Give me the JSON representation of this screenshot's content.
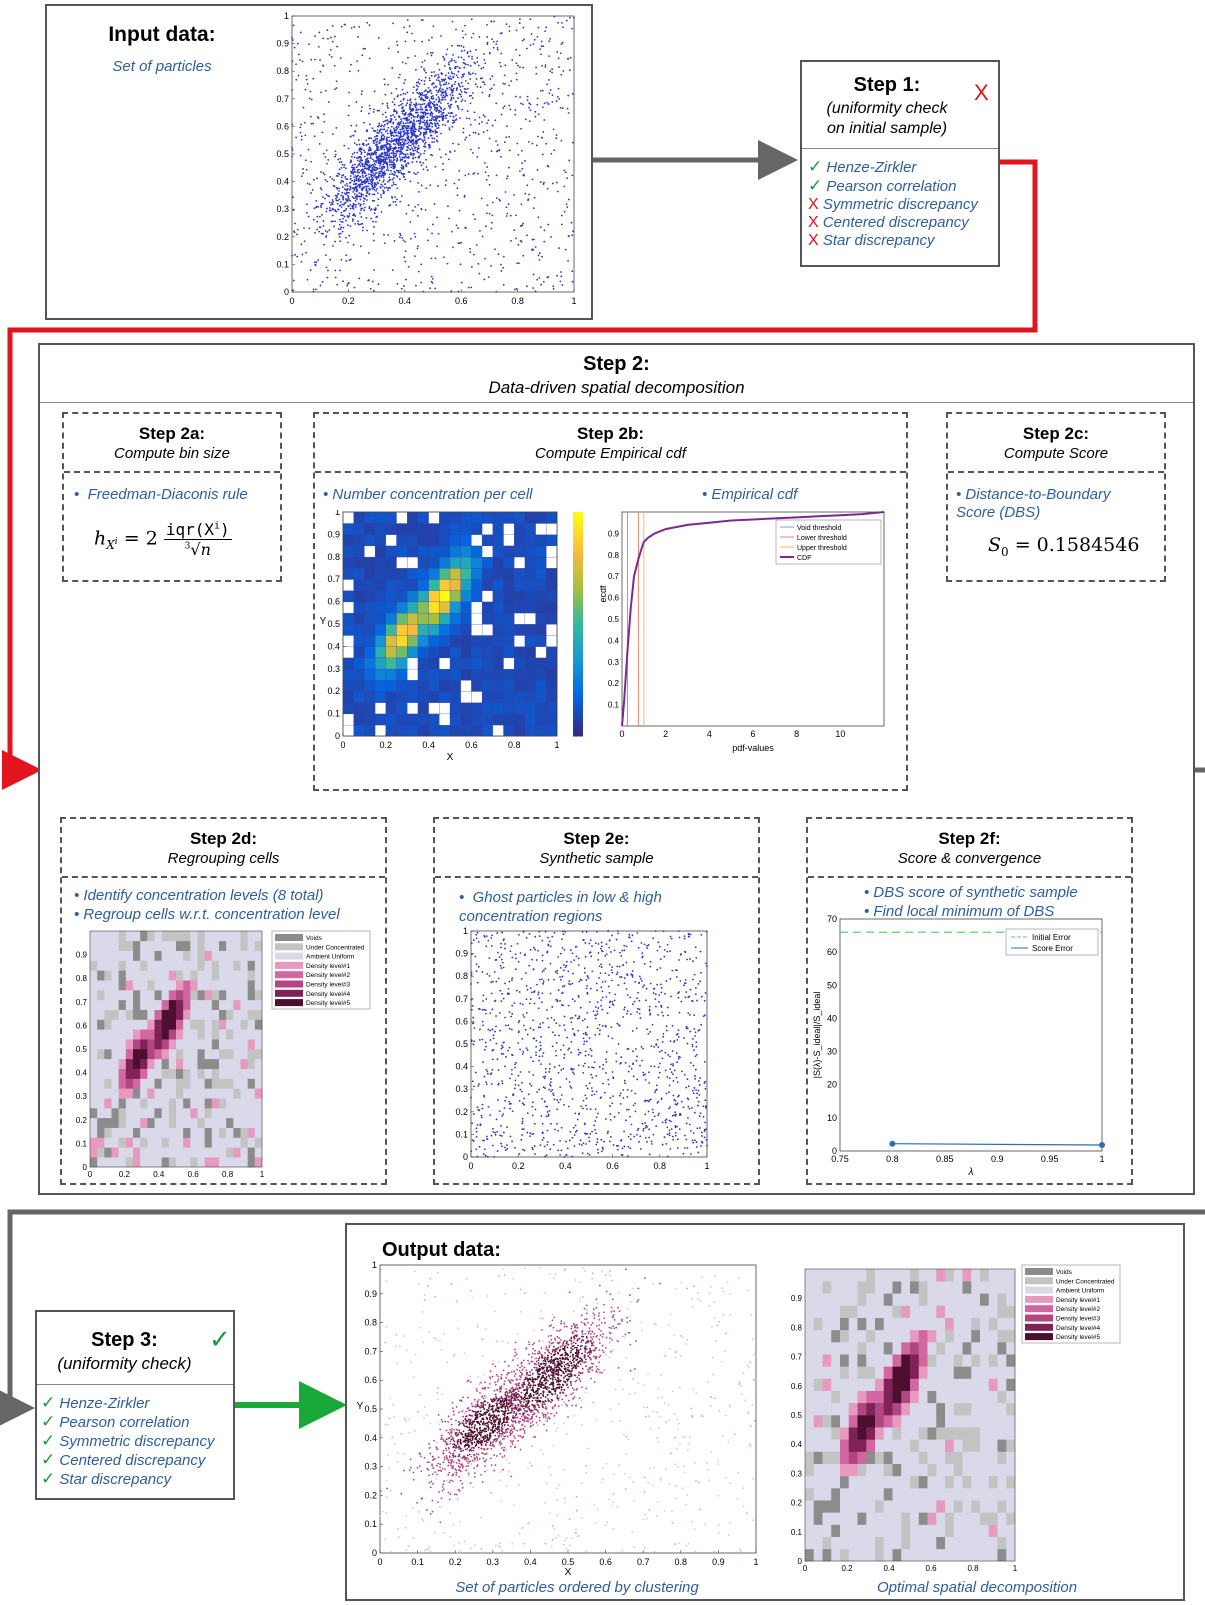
{
  "input": {
    "title": "Input data:",
    "subtitle": "Set of particles"
  },
  "step1": {
    "title": "Step 1:",
    "subtitle_line1": "(uniformity check",
    "subtitle_line2": "on initial sample)",
    "status_mark": "X",
    "tests": [
      {
        "mark": "✓",
        "label": "Henze-Zirkler",
        "pass": true
      },
      {
        "mark": "✓",
        "label": "Pearson correlation",
        "pass": true
      },
      {
        "mark": "X",
        "label": "Symmetric discrepancy",
        "pass": false
      },
      {
        "mark": "X",
        "label": "Centered discrepancy",
        "pass": false
      },
      {
        "mark": "X",
        "label": "Star discrepancy",
        "pass": false
      }
    ]
  },
  "step2": {
    "title": "Step 2:",
    "subtitle": "Data-driven spatial decomposition",
    "a": {
      "title": "Step 2a:",
      "subtitle": "Compute bin size",
      "bullet": "Freedman-Diaconis rule",
      "formula": {
        "lhs": "h",
        "lhs_sub": "X",
        "lhs_sup": "i",
        "eq": "= 2",
        "num": "iqr(X",
        "num_sup": "i",
        "num_close": ")",
        "den_root": "3",
        "den": "n"
      }
    },
    "b": {
      "title": "Step 2b:",
      "subtitle": "Compute Empirical cdf",
      "bullet1": "Number concentration per cell",
      "bullet2": "Empirical cdf"
    },
    "c": {
      "title": "Step 2c:",
      "subtitle": "Compute Score",
      "bullet_line1": "Distance-to-Boundary",
      "bullet_line2": "Score (DBS)",
      "formula": "S",
      "formula_sub": "0",
      "formula_val": "= 0.1584546"
    },
    "d": {
      "title": "Step 2d:",
      "subtitle": "Regrouping cells",
      "bullet1": "Identify concentration levels (8 total)",
      "bullet2": "Regroup cells w.r.t. concentration level"
    },
    "e": {
      "title": "Step 2e:",
      "subtitle": "Synthetic sample",
      "bullet_line1": "Ghost particles in low & high",
      "bullet_line2": "concentration regions"
    },
    "f": {
      "title": "Step 2f:",
      "subtitle": "Score & convergence",
      "bullet1": "DBS score of synthetic sample",
      "bullet2": "Find local minimum of DBS"
    }
  },
  "step3": {
    "title": "Step 3:",
    "subtitle": "(uniformity check)",
    "status_mark": "✓",
    "tests": [
      {
        "mark": "✓",
        "label": "Henze-Zirkler"
      },
      {
        "mark": "✓",
        "label": "Pearson correlation"
      },
      {
        "mark": "✓",
        "label": "Symmetric discrepancy"
      },
      {
        "mark": "✓",
        "label": "Centered discrepancy"
      },
      {
        "mark": "✓",
        "label": "Star discrepancy"
      }
    ]
  },
  "output": {
    "title": "Output data:",
    "caption_left": "Set of particles ordered by clustering",
    "caption_right": "Optimal spatial decomposition"
  },
  "colors": {
    "particle": "#2b35c8",
    "red_arrow": "#e3141e",
    "green_arrow": "#1aa83a",
    "gray_arrow": "#666666",
    "title_blue": "#2e5e9e"
  },
  "chart_data": [
    {
      "id": "input-scatter",
      "type": "scatter",
      "xlim": [
        0,
        1
      ],
      "ylim": [
        0,
        1
      ],
      "xticks": [
        "0",
        "0.2",
        "0.4",
        "0.6",
        "0.8",
        "1"
      ],
      "yticks": [
        "0",
        "0.1",
        "0.2",
        "0.3",
        "0.4",
        "0.5",
        "0.6",
        "0.7",
        "0.8",
        "0.9",
        "1"
      ],
      "clusters": [
        {
          "cx": 0.28,
          "cy": 0.45,
          "angle_deg": 55,
          "sx": 0.12,
          "sy": 0.045
        },
        {
          "cx": 0.46,
          "cy": 0.62,
          "angle_deg": 55,
          "sx": 0.13,
          "sy": 0.045
        }
      ]
    },
    {
      "id": "heatmap",
      "type": "heatmap",
      "xlabel": "X",
      "ylabel": "Y",
      "xlim": [
        0,
        1
      ],
      "ylim": [
        0,
        1
      ],
      "xticks": [
        "0",
        "0.2",
        "0.4",
        "0.6",
        "0.8",
        "1"
      ],
      "yticks": [
        "0",
        "0.1",
        "0.2",
        "0.3",
        "0.4",
        "0.5",
        "0.6",
        "0.7",
        "0.8",
        "0.9",
        "1"
      ]
    },
    {
      "id": "ecdf",
      "type": "line",
      "xlabel": "pdf-values",
      "ylabel": "ecdf",
      "xlim": [
        0,
        12
      ],
      "ylim": [
        0,
        1
      ],
      "xticks": [
        "0",
        "2",
        "4",
        "6",
        "8",
        "10"
      ],
      "yticks": [
        "0.1",
        "0.2",
        "0.3",
        "0.4",
        "0.5",
        "0.6",
        "0.7",
        "0.8",
        "0.9"
      ],
      "legend": [
        "Void threshold",
        "Lower threshold",
        "Upper threshold",
        "CDF"
      ],
      "thresholds": {
        "void": 0.25,
        "lower": 0.75,
        "upper": 1.0
      },
      "series": [
        {
          "name": "CDF",
          "x": [
            0,
            0.1,
            0.25,
            0.4,
            0.55,
            0.75,
            0.9,
            1.0,
            1.2,
            1.5,
            2,
            2.5,
            3,
            4,
            5,
            6,
            7,
            8,
            9,
            10,
            11,
            12
          ],
          "y": [
            0,
            0.12,
            0.35,
            0.55,
            0.7,
            0.78,
            0.83,
            0.86,
            0.88,
            0.9,
            0.92,
            0.93,
            0.94,
            0.95,
            0.96,
            0.965,
            0.97,
            0.975,
            0.98,
            0.985,
            0.99,
            1.0
          ]
        }
      ]
    },
    {
      "id": "regroup",
      "type": "heatmap",
      "xticks": [
        "0",
        "0.2",
        "0.4",
        "0.6",
        "0.8",
        "1"
      ],
      "yticks": [
        "0",
        "0.1",
        "0.2",
        "0.3",
        "0.4",
        "0.5",
        "0.6",
        "0.7",
        "0.8",
        "0.9"
      ],
      "legend": [
        "Voids",
        "Under Concentrated",
        "Ambient Uniform",
        "Density level#1",
        "Density level#2",
        "Density level#3",
        "Density level#4",
        "Density level#5"
      ],
      "legend_colors": [
        "#8c8c8c",
        "#c3c3c3",
        "#d9d9ea",
        "#e79ac0",
        "#d266a0",
        "#b24684",
        "#7f2257",
        "#4d0f30"
      ]
    },
    {
      "id": "synthetic",
      "type": "scatter",
      "xticks": [
        "0",
        "0.2",
        "0.4",
        "0.6",
        "0.8",
        "1"
      ],
      "yticks": [
        "0",
        "0.1",
        "0.2",
        "0.3",
        "0.4",
        "0.5",
        "0.6",
        "0.7",
        "0.8",
        "0.9",
        "1"
      ]
    },
    {
      "id": "convergence",
      "type": "line",
      "xlabel": "λ",
      "ylabel": "|S(λ)-S_ideal|/S_ideal",
      "xlim": [
        0.75,
        1
      ],
      "ylim": [
        0,
        70
      ],
      "xticks": [
        "0.75",
        "0.8",
        "0.85",
        "0.9",
        "0.95",
        "1"
      ],
      "yticks": [
        "0",
        "10",
        "20",
        "30",
        "40",
        "50",
        "60",
        "70"
      ],
      "legend": [
        "Initial Error",
        "Score Error"
      ],
      "series": [
        {
          "name": "Initial Error",
          "x": [
            0.75,
            1
          ],
          "y": [
            66,
            66
          ]
        },
        {
          "name": "Score Error",
          "x": [
            0.8,
            1
          ],
          "y": [
            2.2,
            1.8
          ]
        }
      ]
    },
    {
      "id": "output-scatter",
      "type": "scatter",
      "xlabel": "X",
      "ylabel": "Y",
      "xticks": [
        "0",
        "0.1",
        "0.2",
        "0.3",
        "0.4",
        "0.5",
        "0.6",
        "0.7",
        "0.8",
        "0.9",
        "1"
      ],
      "yticks": [
        "0",
        "0.1",
        "0.2",
        "0.3",
        "0.4",
        "0.5",
        "0.6",
        "0.7",
        "0.8",
        "0.9",
        "1"
      ]
    },
    {
      "id": "output-regroup",
      "type": "heatmap",
      "xticks": [
        "0",
        "0.2",
        "0.4",
        "0.6",
        "0.8",
        "1"
      ],
      "yticks": [
        "0",
        "0.1",
        "0.2",
        "0.3",
        "0.4",
        "0.5",
        "0.6",
        "0.7",
        "0.8",
        "0.9"
      ]
    }
  ]
}
